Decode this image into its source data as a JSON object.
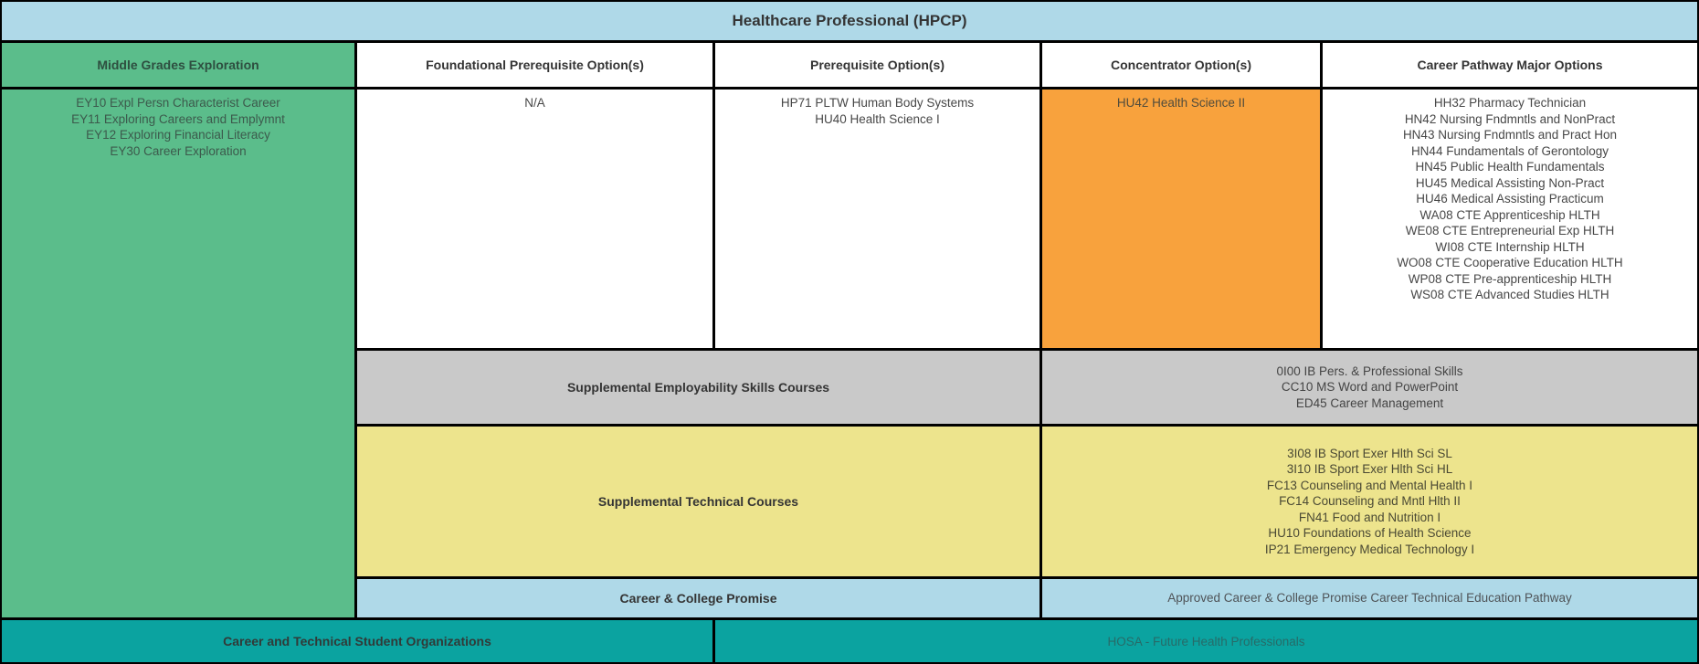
{
  "title": "Healthcare Professional (HPCP)",
  "columns": {
    "middle_grades": {
      "header": "Middle Grades Exploration",
      "courses": [
        "EY10 Expl Persn Characterist Career",
        "EY11 Exploring Careers and Emplymnt",
        "EY12 Exploring Financial Literacy",
        "EY30 Career Exploration"
      ]
    },
    "foundational": {
      "header": "Foundational Prerequisite Option(s)",
      "courses": [
        "N/A"
      ]
    },
    "prerequisite": {
      "header": "Prerequisite Option(s)",
      "courses": [
        "HP71 PLTW Human Body Systems",
        "HU40 Health Science I"
      ]
    },
    "concentrator": {
      "header": "Concentrator Option(s)",
      "courses": [
        "HU42 Health Science II"
      ]
    },
    "major": {
      "header": "Career Pathway Major Options",
      "courses": [
        "HH32 Pharmacy Technician",
        "HN42 Nursing Fndmntls and NonPract",
        "HN43 Nursing Fndmntls and Pract Hon",
        "HN44 Fundamentals of Gerontology",
        "HN45 Public Health Fundamentals",
        "HU45 Medical Assisting Non-Pract",
        "HU46 Medical Assisting Practicum",
        "WA08 CTE Apprenticeship HLTH",
        "WE08 CTE Entrepreneurial Exp HLTH",
        "WI08 CTE Internship HLTH",
        "WO08 CTE Cooperative Education HLTH",
        "WP08 CTE Pre-apprenticeship HLTH",
        "WS08 CTE Advanced Studies HLTH"
      ]
    }
  },
  "supplemental_employability": {
    "label": "Supplemental Employability Skills Courses",
    "courses": [
      "0I00 IB Pers. & Professional Skills",
      "CC10 MS Word and PowerPoint",
      "ED45 Career Management"
    ]
  },
  "supplemental_technical": {
    "label": "Supplemental Technical Courses",
    "courses": [
      "3I08 IB Sport Exer Hlth Sci SL",
      "3I10 IB Sport Exer Hlth Sci HL",
      "FC13 Counseling and Mental Health I",
      "FC14 Counseling and Mntl Hlth II",
      "FN41 Food and Nutrition I",
      "HU10 Foundations of Health Science",
      "IP21 Emergency Medical Technology I"
    ]
  },
  "career_college_promise": {
    "label": "Career & College Promise",
    "value": "Approved Career & College Promise Career Technical Education Pathway"
  },
  "ctso": {
    "label": "Career and Technical Student Organizations",
    "value": "HOSA - Future Health Professionals"
  },
  "colors": {
    "header_blue": "#AFD9E8",
    "green": "#5BBD8B",
    "orange": "#F8A23D",
    "gray": "#C9C9C9",
    "yellow": "#EDE48D",
    "teal": "#0BA3A0",
    "border": "#000000"
  }
}
